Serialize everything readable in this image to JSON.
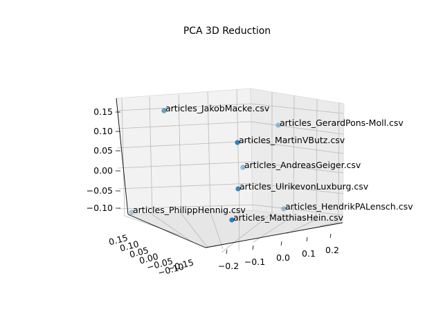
{
  "chart_data": {
    "type": "scatter",
    "projection": "3d",
    "title": "PCA 3D Reduction",
    "xlabel": "",
    "ylabel": "",
    "zlabel": "",
    "x_ticks": [
      "−0.2",
      "−0.1",
      "0.0",
      "0.1",
      "0.2"
    ],
    "y_ticks": [
      "0.15",
      "0.10",
      "0.05",
      "0.00",
      "−0.05",
      "−0.10",
      "−0.15"
    ],
    "z_ticks": [
      "0.15",
      "0.10",
      "0.05",
      "0.00",
      "−0.05",
      "−0.10"
    ],
    "grid": true,
    "point_color": "#1f77b4",
    "points": [
      {
        "label": "articles_JakobMacke.csv",
        "x": -0.16,
        "y": 0.1,
        "z": 0.155
      },
      {
        "label": "articles_GerardPons-Moll.csv",
        "x": 0.12,
        "y": -0.02,
        "z": 0.11
      },
      {
        "label": "articles_MartinVButz.csv",
        "x": 0.02,
        "y": 0.01,
        "z": 0.065
      },
      {
        "label": "articles_AndreasGeiger.csv",
        "x": 0.03,
        "y": 0.0,
        "z": 0.005
      },
      {
        "label": "articles_UlrikevonLuxburg.csv",
        "x": 0.02,
        "y": 0.02,
        "z": -0.045
      },
      {
        "label": "articles_PhilippHennig.csv",
        "x": -0.22,
        "y": 0.12,
        "z": -0.11
      },
      {
        "label": "articles_HendrikPALensch.csv",
        "x": 0.18,
        "y": -0.07,
        "z": -0.105
      },
      {
        "label": "articles_MatthiasHein.csv",
        "x": 0.0,
        "y": 0.04,
        "z": -0.12
      }
    ]
  }
}
